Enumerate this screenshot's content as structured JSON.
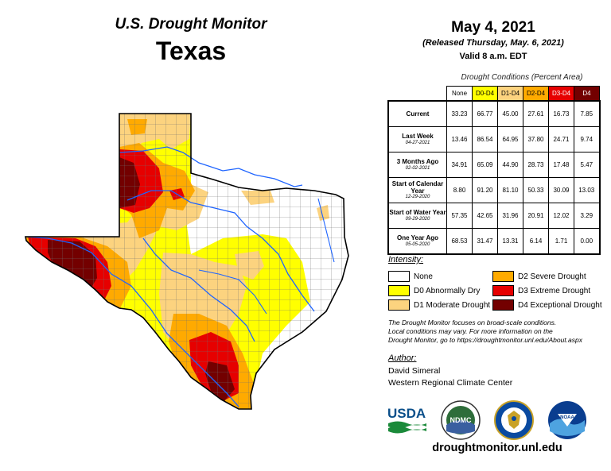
{
  "header": {
    "monitor_title": "U.S. Drought Monitor",
    "state": "Texas",
    "date": "May 4, 2021",
    "released": "(Released Thursday, May. 6, 2021)",
    "valid": "Valid 8 a.m. EDT"
  },
  "table": {
    "caption": "Drought Conditions (Percent Area)",
    "columns": [
      "None",
      "D0-D4",
      "D1-D4",
      "D2-D4",
      "D3-D4",
      "D4"
    ],
    "rows": [
      {
        "label": "Current",
        "sub": "",
        "values": [
          "33.23",
          "66.77",
          "45.00",
          "27.61",
          "16.73",
          "7.85"
        ]
      },
      {
        "label": "Last Week",
        "sub": "04-27-2021",
        "values": [
          "13.46",
          "86.54",
          "64.95",
          "37.80",
          "24.71",
          "9.74"
        ]
      },
      {
        "label": "3 Months Ago",
        "sub": "02-02-2021",
        "values": [
          "34.91",
          "65.09",
          "44.90",
          "28.73",
          "17.48",
          "5.47"
        ]
      },
      {
        "label": "Start of Calendar Year",
        "sub": "12-29-2020",
        "values": [
          "8.80",
          "91.20",
          "81.10",
          "50.33",
          "30.09",
          "13.03"
        ]
      },
      {
        "label": "Start of Water Year",
        "sub": "09-29-2020",
        "values": [
          "57.35",
          "42.65",
          "31.96",
          "20.91",
          "12.02",
          "3.29"
        ]
      },
      {
        "label": "One Year Ago",
        "sub": "05-05-2020",
        "values": [
          "68.53",
          "31.47",
          "13.31",
          "6.14",
          "1.71",
          "0.00"
        ]
      }
    ]
  },
  "legend": {
    "title": "Intensity:",
    "items": [
      {
        "label": "None",
        "color": "#ffffff"
      },
      {
        "label": "D0 Abnormally Dry",
        "color": "#ffff00"
      },
      {
        "label": "D1 Moderate Drought",
        "color": "#fcd37f"
      },
      {
        "label": "D2 Severe Drought",
        "color": "#ffaa00"
      },
      {
        "label": "D3 Extreme Drought",
        "color": "#e60000"
      },
      {
        "label": "D4 Exceptional Drought",
        "color": "#730000"
      }
    ]
  },
  "note": {
    "line1": "The Drought Monitor focuses on broad-scale conditions.",
    "line2": "Local conditions may vary. For more information on the",
    "line3": "Drought Monitor, go to https://droughtmonitor.unl.edu/About.aspx"
  },
  "author": {
    "title": "Author:",
    "name": "David Simeral",
    "org": "Western Regional Climate Center"
  },
  "logos": {
    "usda": "USDA",
    "ndmc": "NDMC",
    "noaa": "NOAA"
  },
  "footer": {
    "site": "droughtmonitor.unl.edu"
  }
}
